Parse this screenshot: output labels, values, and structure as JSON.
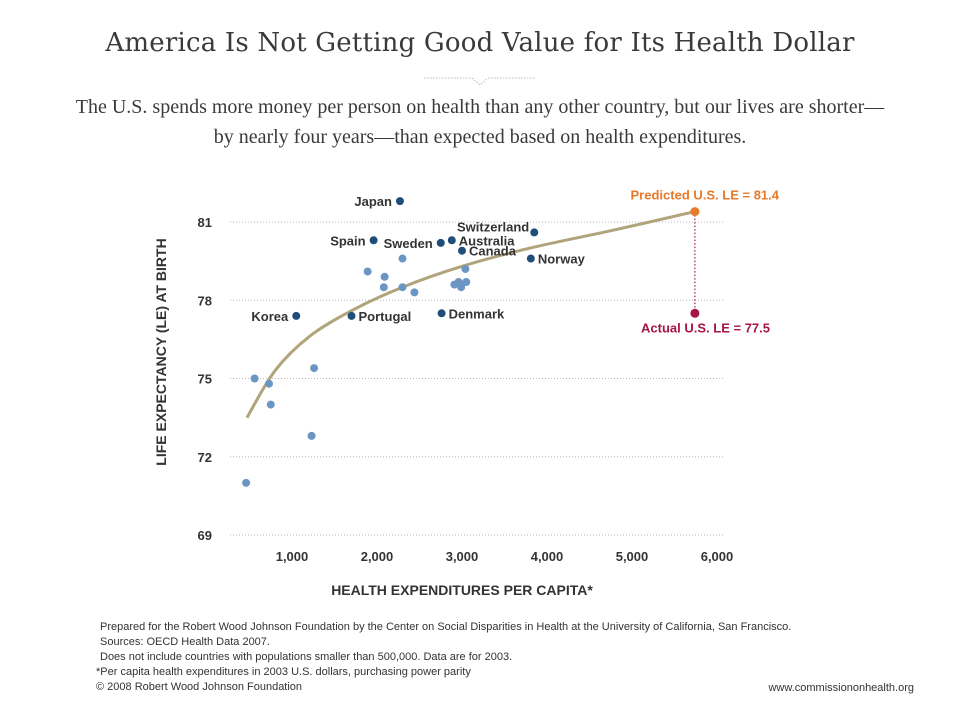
{
  "header": {
    "title": "America Is Not Getting Good Value for Its Health Dollar",
    "subtitle_line1": "The U.S. spends more money per person on health than any other country, but our lives are shorter—",
    "subtitle_line2": "by nearly four years—than expected based on health expenditures."
  },
  "colors": {
    "labeled_point": "#1f4e79",
    "unlabeled_point": "#6b96c4",
    "trend_line": "#b0a47a",
    "predicted": "#e8782a",
    "actual": "#a6144a",
    "grid": "#b8b8b8",
    "text": "#333333"
  },
  "chart_data": {
    "type": "scatter",
    "xlabel": "HEALTH EXPENDITURES PER CAPITA*",
    "ylabel": "LIFE EXPECTANCY (LE) AT BIRTH",
    "xlim": [
      300,
      6000
    ],
    "ylim": [
      69,
      81.5
    ],
    "x_ticks": [
      1000,
      2000,
      3000,
      4000,
      5000,
      6000
    ],
    "x_tick_labels": [
      "1,000",
      "2,000",
      "3,000",
      "4,000",
      "5,000",
      "6,000"
    ],
    "y_ticks": [
      69,
      72,
      75,
      78,
      81
    ],
    "y_tick_labels": [
      "69",
      "72",
      "75",
      "78",
      "81"
    ],
    "grid": "horizontal dotted",
    "labeled_points": [
      {
        "label": "Japan",
        "x": 2270,
        "y": 81.8,
        "label_pos": "left"
      },
      {
        "label": "Switzerland",
        "x": 3850,
        "y": 80.6,
        "label_pos": "left-above"
      },
      {
        "label": "Spain",
        "x": 1960,
        "y": 80.3,
        "label_pos": "left"
      },
      {
        "label": "Sweden",
        "x": 2750,
        "y": 80.2,
        "label_pos": "left"
      },
      {
        "label": "Australia",
        "x": 2880,
        "y": 80.3,
        "label_pos": "right"
      },
      {
        "label": "Canada",
        "x": 3000,
        "y": 79.9,
        "label_pos": "right"
      },
      {
        "label": "Norway",
        "x": 3810,
        "y": 79.6,
        "label_pos": "right"
      },
      {
        "label": "Korea",
        "x": 1050,
        "y": 77.4,
        "label_pos": "left"
      },
      {
        "label": "Portugal",
        "x": 1700,
        "y": 77.4,
        "label_pos": "right"
      },
      {
        "label": "Denmark",
        "x": 2760,
        "y": 77.5,
        "label_pos": "right"
      }
    ],
    "unlabeled_points": [
      {
        "x": 560,
        "y": 75.0
      },
      {
        "x": 730,
        "y": 74.8
      },
      {
        "x": 750,
        "y": 74.0
      },
      {
        "x": 1260,
        "y": 75.4
      },
      {
        "x": 1230,
        "y": 72.8
      },
      {
        "x": 460,
        "y": 71.0
      },
      {
        "x": 1890,
        "y": 79.1
      },
      {
        "x": 2090,
        "y": 78.9
      },
      {
        "x": 2300,
        "y": 79.6
      },
      {
        "x": 2080,
        "y": 78.5
      },
      {
        "x": 2300,
        "y": 78.5
      },
      {
        "x": 2440,
        "y": 78.3
      },
      {
        "x": 2910,
        "y": 78.6
      },
      {
        "x": 2960,
        "y": 78.7
      },
      {
        "x": 2990,
        "y": 78.5
      },
      {
        "x": 3050,
        "y": 78.7
      },
      {
        "x": 3040,
        "y": 79.2
      }
    ],
    "trend_line": [
      {
        "x": 470,
        "y": 73.5
      },
      {
        "x": 800,
        "y": 75.3
      },
      {
        "x": 1200,
        "y": 76.6
      },
      {
        "x": 1700,
        "y": 77.6
      },
      {
        "x": 2300,
        "y": 78.5
      },
      {
        "x": 3000,
        "y": 79.3
      },
      {
        "x": 3800,
        "y": 80.0
      },
      {
        "x": 4800,
        "y": 80.7
      },
      {
        "x": 5740,
        "y": 81.4
      }
    ],
    "us_predicted": {
      "label": "Predicted U.S. LE = 81.4",
      "x": 5740,
      "y": 81.4
    },
    "us_actual": {
      "label": "Actual U.S. LE = 77.5",
      "x": 5740,
      "y": 77.5
    }
  },
  "footer": {
    "prepared": "Prepared for the Robert Wood Johnson Foundation by the Center on Social Disparities in Health at the University of California, San Francisco.",
    "sources": "Sources: OECD Health Data 2007.",
    "note": "Does not include countries with populations smaller than 500,000. Data are for 2003.",
    "footnote": "*Per capita health expenditures in 2003 U.S. dollars, purchasing power parity",
    "copyright": "© 2008 Robert Wood Johnson Foundation",
    "website": "www.commissiononhealth.org"
  }
}
